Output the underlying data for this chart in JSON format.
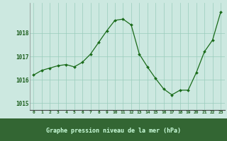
{
  "x": [
    0,
    1,
    2,
    3,
    4,
    5,
    6,
    7,
    8,
    9,
    10,
    11,
    12,
    13,
    14,
    15,
    16,
    17,
    18,
    19,
    20,
    21,
    22,
    23
  ],
  "y": [
    1016.2,
    1016.4,
    1016.5,
    1016.6,
    1016.65,
    1016.55,
    1016.75,
    1017.1,
    1017.6,
    1018.1,
    1018.55,
    1018.6,
    1018.35,
    1017.1,
    1016.55,
    1016.05,
    1015.6,
    1015.35,
    1015.55,
    1015.55,
    1016.3,
    1017.2,
    1017.7,
    1018.9
  ],
  "line_color": "#1a6b1a",
  "marker_color": "#1a6b1a",
  "bg_color": "#cce8e0",
  "grid_color": "#99ccbb",
  "bottom_band_color": "#336633",
  "xlabel": "Graphe pression niveau de la mer (hPa)",
  "xlabel_color": "#99ffcc",
  "tick_label_color": "#1a5c1a",
  "ylim": [
    1014.7,
    1019.3
  ],
  "yticks": [
    1015,
    1016,
    1017,
    1018
  ],
  "xlim": [
    -0.5,
    23.5
  ],
  "xticks": [
    0,
    1,
    2,
    3,
    4,
    5,
    6,
    7,
    8,
    9,
    10,
    11,
    12,
    13,
    14,
    15,
    16,
    17,
    18,
    19,
    20,
    21,
    22,
    23
  ]
}
